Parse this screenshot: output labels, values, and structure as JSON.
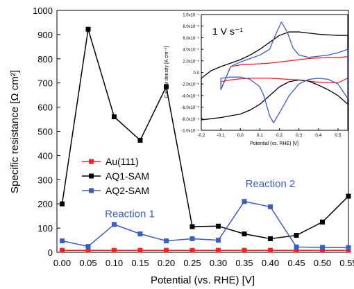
{
  "chart_data": [
    {
      "type": "line",
      "title": "",
      "xlabel": "Potential (vs. RHE) [V]",
      "ylabel": "Specific resistance [Ω cm²]",
      "xlim": [
        -0.01,
        0.55
      ],
      "ylim": [
        0,
        1000
      ],
      "xticks": [
        0.0,
        0.05,
        0.1,
        0.15,
        0.2,
        0.25,
        0.3,
        0.35,
        0.4,
        0.45,
        0.5,
        0.55
      ],
      "xtick_labels": [
        "0.00",
        "0.05",
        "0.10",
        "0.15",
        "0.20",
        "0.25",
        "0.30",
        "0.35",
        "0.40",
        "0.45",
        "0.50",
        "0.55"
      ],
      "yticks": [
        0,
        100,
        200,
        300,
        400,
        500,
        600,
        700,
        800,
        900,
        1000
      ],
      "ytick_labels": [
        "0",
        "100",
        "200",
        "300",
        "400",
        "500",
        "600",
        "700",
        "800",
        "900",
        "1000"
      ],
      "grid": false,
      "legend_position": "left-middle",
      "x": [
        0.0,
        0.05,
        0.1,
        0.15,
        0.2,
        0.25,
        0.3,
        0.35,
        0.4,
        0.45,
        0.5,
        0.55
      ],
      "series": [
        {
          "name": "Au(111)",
          "color": "#ff2020",
          "marker": "square",
          "values": [
            8,
            8,
            8,
            8,
            8,
            8,
            8,
            8,
            8,
            8,
            8,
            8
          ]
        },
        {
          "name": "AQ1-SAM",
          "color": "#000000",
          "marker": "square",
          "values": [
            200,
            922,
            560,
            463,
            685,
            106,
            108,
            76,
            56,
            70,
            125,
            232
          ]
        },
        {
          "name": "AQ2-SAM",
          "color": "#3a5cc5",
          "marker": "square",
          "values": [
            47,
            24,
            115,
            76,
            47,
            56,
            50,
            210,
            188,
            22,
            20,
            19
          ]
        }
      ],
      "annotations": [
        {
          "text": "Reaction 1",
          "x": 0.13,
          "y": 145,
          "color": "#3a5cc5"
        },
        {
          "text": "Reaction 2",
          "x": 0.4,
          "y": 270,
          "color": "#3a5cc5"
        }
      ]
    },
    {
      "type": "line",
      "title": "",
      "annotation": "1 V s⁻¹",
      "xlabel": "Potential (vs. RHE) [V]",
      "ylabel": "Current density [A cm⁻²]",
      "xlim": [
        -0.2,
        0.55
      ],
      "ylim": [
        -0.0001,
        0.0001
      ],
      "xticks": [
        -0.2,
        -0.1,
        0.0,
        0.1,
        0.2,
        0.3,
        0.4,
        0.5
      ],
      "xtick_labels": [
        "-0.2",
        "-0.1",
        "0.0",
        "0.1",
        "0.2",
        "0.3",
        "0.4",
        "0.5"
      ],
      "yticks": [
        0.0001,
        8e-05,
        6e-05,
        4e-05,
        2e-05,
        0,
        -2e-05,
        -4e-05,
        -6e-05,
        -8e-05,
        -0.0001
      ],
      "ytick_labels": [
        "1.0x10⁻⁴",
        "8.0x10⁻⁵",
        "6.0x10⁻⁵",
        "4.0x10⁻⁵",
        "2.0x10⁻⁵",
        "0.0",
        "-2.0x10⁻⁵",
        "-4.0x10⁻⁵",
        "-6.0x10⁻⁵",
        "-8.0x10⁻⁵",
        "-1.0x10⁻⁴"
      ],
      "series": [
        {
          "color": "#ff2020",
          "x": [
            -0.1,
            -0.05,
            0.0,
            0.05,
            0.1,
            0.15,
            0.2,
            0.25,
            0.3,
            0.35,
            0.4,
            0.45,
            0.5,
            0.55,
            0.55,
            0.5,
            0.45,
            0.4,
            0.35,
            0.3,
            0.25,
            0.2,
            0.15,
            0.1,
            0.05,
            0.0,
            -0.05,
            -0.1
          ],
          "y": [
            -3e-05,
            1e-05,
            1.3e-05,
            1.4e-05,
            1.5e-05,
            1.6e-05,
            1.8e-05,
            2e-05,
            2.2e-05,
            2.4e-05,
            2.5e-05,
            2.6e-05,
            2.6e-05,
            2.7e-05,
            -1e-05,
            -1.8e-05,
            -1.8e-05,
            -1.7e-05,
            -1.5e-05,
            -1.3e-05,
            -1.2e-05,
            -1.1e-05,
            -1e-05,
            -1e-05,
            -1e-05,
            -1.1e-05,
            -1.3e-05,
            -1.6e-05
          ]
        },
        {
          "color": "#000000",
          "x": [
            -0.2,
            -0.15,
            -0.1,
            -0.05,
            0.0,
            0.05,
            0.1,
            0.15,
            0.2,
            0.25,
            0.3,
            0.35,
            0.4,
            0.45,
            0.5,
            0.55,
            0.55,
            0.5,
            0.45,
            0.4,
            0.35,
            0.3,
            0.25,
            0.2,
            0.15,
            0.1,
            0.05,
            0.0,
            -0.05,
            -0.1,
            -0.15,
            -0.2
          ],
          "y": [
            -1e-05,
            3e-06,
            1e-05,
            1.6e-05,
            2.2e-05,
            3e-05,
            4e-05,
            5.2e-05,
            6.4e-05,
            7e-05,
            7e-05,
            6.8e-05,
            6.6e-05,
            6.5e-05,
            6.4e-05,
            6.4e-05,
            -5.5e-05,
            -4e-05,
            -3e-05,
            -2.2e-05,
            -1.5e-05,
            -1.3e-05,
            -1.6e-05,
            -2.5e-05,
            -4e-05,
            -5.5e-05,
            -6.5e-05,
            -7.2e-05,
            -7.5e-05,
            -7.8e-05,
            -8e-05,
            -8.2e-05
          ]
        },
        {
          "color": "#3a5cc5",
          "x": [
            -0.1,
            -0.05,
            0.0,
            0.05,
            0.1,
            0.15,
            0.18,
            0.21,
            0.24,
            0.27,
            0.3,
            0.35,
            0.4,
            0.45,
            0.5,
            0.55,
            0.55,
            0.5,
            0.45,
            0.4,
            0.35,
            0.3,
            0.25,
            0.2,
            0.17,
            0.15,
            0.12,
            0.1,
            0.05,
            0.0,
            -0.05,
            -0.1
          ],
          "y": [
            -3e-05,
            1e-05,
            1.8e-05,
            2.4e-05,
            3e-05,
            4e-05,
            6.5e-05,
            8.7e-05,
            7e-05,
            4.2e-05,
            3e-05,
            2.6e-05,
            2.8e-05,
            3e-05,
            3.4e-05,
            4e-05,
            -4.5e-05,
            -2e-05,
            -1.2e-05,
            -1e-05,
            -1.2e-05,
            -2e-05,
            -4e-05,
            -7e-05,
            -8.7e-05,
            -7.5e-05,
            -4e-05,
            -2.5e-05,
            -1.2e-05,
            -8e-06,
            -8e-06,
            -1e-05
          ]
        }
      ]
    }
  ]
}
